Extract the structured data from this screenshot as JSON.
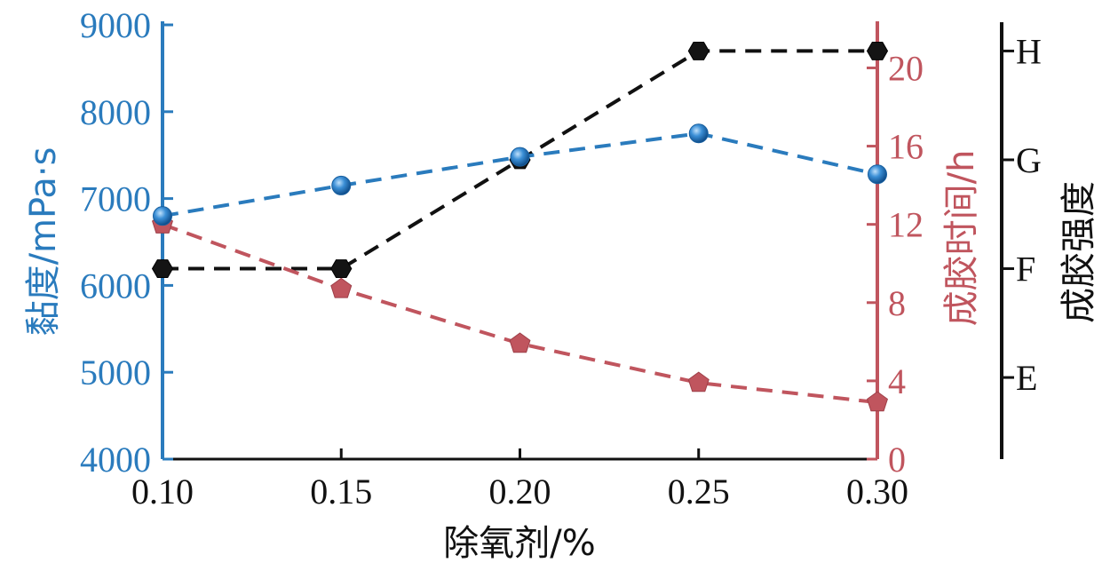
{
  "chart_data": {
    "type": "line",
    "xlabel": "除氧剂/%",
    "x": [
      "0.10",
      "0.15",
      "0.20",
      "0.25",
      "0.30"
    ],
    "xlim": [
      0.1,
      0.3
    ],
    "axes": {
      "left": {
        "label": "黏度/mPa·s",
        "color": "#2a7bbd",
        "ylim": [
          4000,
          9000
        ],
        "ticks": [
          "4000",
          "5000",
          "6000",
          "7000",
          "8000",
          "9000"
        ]
      },
      "right": {
        "label": "成胶时间/h",
        "color": "#c0555e",
        "ylim": [
          0,
          22.2
        ],
        "ticks": [
          "0",
          "4",
          "8",
          "12",
          "16",
          "20"
        ]
      },
      "far_right": {
        "label": "成胶强度",
        "color": "#111111",
        "categories": [
          "E",
          "F",
          "G",
          "H"
        ],
        "ylim": [
          4.25,
          8.24
        ]
      }
    },
    "series": [
      {
        "axis": "left",
        "color": "#2a7bbd",
        "marker": "sphere",
        "values": [
          6800,
          7150,
          7480,
          7750,
          7280
        ]
      },
      {
        "axis": "right",
        "color": "#c0555e",
        "marker": "pentagon",
        "values": [
          12.0,
          8.7,
          5.9,
          3.9,
          2.9
        ]
      },
      {
        "axis": "far_right",
        "color": "#111111",
        "marker": "hexagon",
        "values": [
          6.0,
          6.0,
          7.0,
          8.0,
          8.0
        ]
      }
    ]
  }
}
